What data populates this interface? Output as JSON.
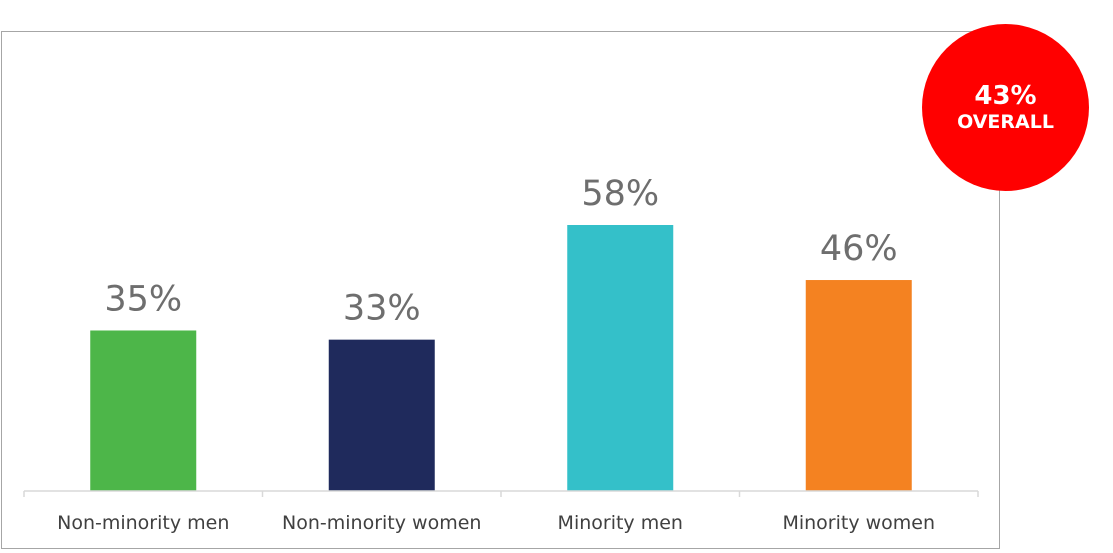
{
  "chart_data": {
    "type": "bar",
    "categories": [
      "Non-minority men",
      "Non-minority women",
      "Minority men",
      "Minority women"
    ],
    "values": [
      35,
      33,
      58,
      46
    ],
    "data_labels": [
      "35%",
      "33%",
      "58%",
      "46%"
    ],
    "colors": [
      "#4db649",
      "#1f2a5c",
      "#34c0c9",
      "#f48221"
    ],
    "ylim": [
      0,
      70
    ],
    "title": "",
    "xlabel": "",
    "ylabel": "",
    "grid": false,
    "legend": "none"
  },
  "badge": {
    "value": "43%",
    "label": "OVERALL",
    "color": "#ff0000"
  }
}
